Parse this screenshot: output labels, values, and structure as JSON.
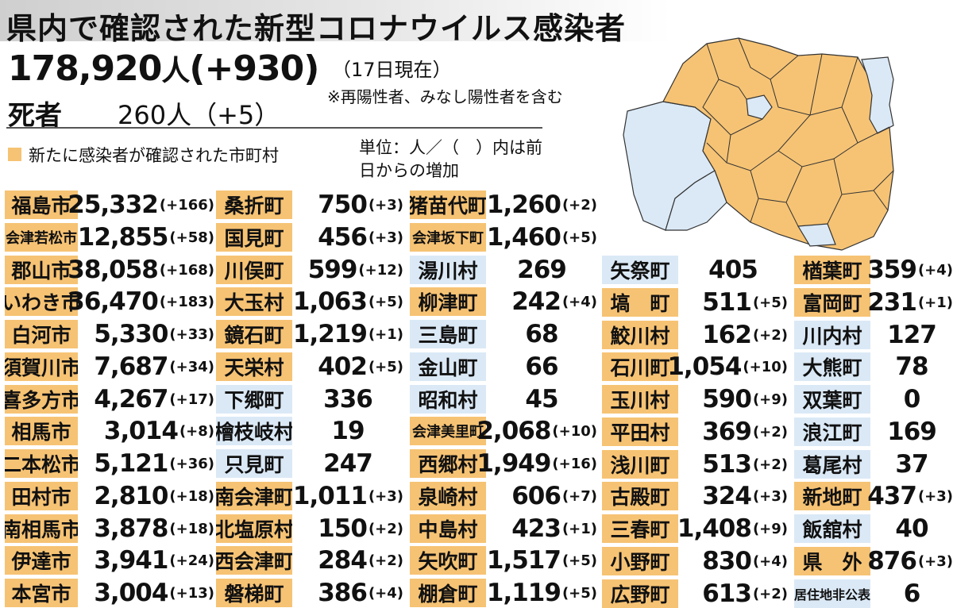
{
  "title": "県内で確認された新型コロナウイルス感染者",
  "total": {
    "count": "178,920",
    "unit": "人",
    "change": "(+930)"
  },
  "as_of": "（17日現在）",
  "note": "※再陽性者、みなし陽性者を含む",
  "deaths": {
    "label": "死者",
    "value": "260人（+5）"
  },
  "legend": "新たに感染者が確認された市町村",
  "unit_note": "単位：人／（　）内は前日からの増加",
  "colors": {
    "new_cases": "#f6c374",
    "no_new_cases": "#dbe9f6"
  },
  "columns": [
    [
      {
        "name": "福島市",
        "num": "25,332",
        "chg": "(+166)",
        "new": true
      },
      {
        "name": "会津若松市",
        "num": "12,855",
        "chg": "(+58)",
        "new": true
      },
      {
        "name": "郡山市",
        "num": "38,058",
        "chg": "(+168)",
        "new": true
      },
      {
        "name": "いわき市",
        "num": "36,470",
        "chg": "(+183)",
        "new": true
      },
      {
        "name": "白河市",
        "num": "5,330",
        "chg": "(+33)",
        "new": true
      },
      {
        "name": "須賀川市",
        "num": "7,687",
        "chg": "(+34)",
        "new": true
      },
      {
        "name": "喜多方市",
        "num": "4,267",
        "chg": "(+17)",
        "new": true
      },
      {
        "name": "相馬市",
        "num": "3,014",
        "chg": "(+8)",
        "new": true
      },
      {
        "name": "二本松市",
        "num": "5,121",
        "chg": "(+36)",
        "new": true
      },
      {
        "name": "田村市",
        "num": "2,810",
        "chg": "(+18)",
        "new": true
      },
      {
        "name": "南相馬市",
        "num": "3,878",
        "chg": "(+18)",
        "new": true
      },
      {
        "name": "伊達市",
        "num": "3,941",
        "chg": "(+24)",
        "new": true
      },
      {
        "name": "本宮市",
        "num": "3,004",
        "chg": "(+13)",
        "new": true
      }
    ],
    [
      {
        "name": "桑折町",
        "num": "750",
        "chg": "(+3)",
        "new": true
      },
      {
        "name": "国見町",
        "num": "456",
        "chg": "(+3)",
        "new": true
      },
      {
        "name": "川俣町",
        "num": "599",
        "chg": "(+12)",
        "new": true
      },
      {
        "name": "大玉村",
        "num": "1,063",
        "chg": "(+5)",
        "new": true
      },
      {
        "name": "鏡石町",
        "num": "1,219",
        "chg": "(+1)",
        "new": true
      },
      {
        "name": "天栄村",
        "num": "402",
        "chg": "(+5)",
        "new": true
      },
      {
        "name": "下郷町",
        "num": "336",
        "chg": "",
        "new": false
      },
      {
        "name": "檜枝岐村",
        "num": "19",
        "chg": "",
        "new": false
      },
      {
        "name": "只見町",
        "num": "247",
        "chg": "",
        "new": false
      },
      {
        "name": "南会津町",
        "num": "1,011",
        "chg": "(+3)",
        "new": true
      },
      {
        "name": "北塩原村",
        "num": "150",
        "chg": "(+2)",
        "new": true
      },
      {
        "name": "西会津町",
        "num": "284",
        "chg": "(+2)",
        "new": true
      },
      {
        "name": "磐梯町",
        "num": "386",
        "chg": "(+4)",
        "new": true
      }
    ],
    [
      {
        "name": "猪苗代町",
        "num": "1,260",
        "chg": "(+2)",
        "new": true
      },
      {
        "name": "会津坂下町",
        "num": "1,460",
        "chg": "(+5)",
        "new": true
      },
      {
        "name": "湯川村",
        "num": "269",
        "chg": "",
        "new": false
      },
      {
        "name": "柳津町",
        "num": "242",
        "chg": "(+4)",
        "new": true
      },
      {
        "name": "三島町",
        "num": "68",
        "chg": "",
        "new": false
      },
      {
        "name": "金山町",
        "num": "66",
        "chg": "",
        "new": false
      },
      {
        "name": "昭和村",
        "num": "45",
        "chg": "",
        "new": false
      },
      {
        "name": "会津美里町",
        "num": "2,068",
        "chg": "(+10)",
        "new": true
      },
      {
        "name": "西郷村",
        "num": "1,949",
        "chg": "(+16)",
        "new": true
      },
      {
        "name": "泉崎村",
        "num": "606",
        "chg": "(+7)",
        "new": true
      },
      {
        "name": "中島村",
        "num": "423",
        "chg": "(+1)",
        "new": true
      },
      {
        "name": "矢吹町",
        "num": "1,517",
        "chg": "(+5)",
        "new": true
      },
      {
        "name": "棚倉町",
        "num": "1,119",
        "chg": "(+5)",
        "new": true
      }
    ],
    [
      {
        "name": "矢祭町",
        "num": "405",
        "chg": "",
        "new": false
      },
      {
        "name": "塙　町",
        "num": "511",
        "chg": "(+5)",
        "new": true
      },
      {
        "name": "鮫川村",
        "num": "162",
        "chg": "(+2)",
        "new": true
      },
      {
        "name": "石川町",
        "num": "1,054",
        "chg": "(+10)",
        "new": true
      },
      {
        "name": "玉川村",
        "num": "590",
        "chg": "(+9)",
        "new": true
      },
      {
        "name": "平田村",
        "num": "369",
        "chg": "(+2)",
        "new": true
      },
      {
        "name": "浅川町",
        "num": "513",
        "chg": "(+2)",
        "new": true
      },
      {
        "name": "古殿町",
        "num": "324",
        "chg": "(+3)",
        "new": true
      },
      {
        "name": "三春町",
        "num": "1,408",
        "chg": "(+9)",
        "new": true
      },
      {
        "name": "小野町",
        "num": "830",
        "chg": "(+4)",
        "new": true
      },
      {
        "name": "広野町",
        "num": "613",
        "chg": "(+2)",
        "new": true
      }
    ],
    [
      {
        "name": "楢葉町",
        "num": "359",
        "chg": "(+4)",
        "new": true
      },
      {
        "name": "富岡町",
        "num": "231",
        "chg": "(+1)",
        "new": true
      },
      {
        "name": "川内村",
        "num": "127",
        "chg": "",
        "new": false
      },
      {
        "name": "大熊町",
        "num": "78",
        "chg": "",
        "new": false
      },
      {
        "name": "双葉町",
        "num": "0",
        "chg": "",
        "new": false
      },
      {
        "name": "浪江町",
        "num": "169",
        "chg": "",
        "new": false
      },
      {
        "name": "葛尾村",
        "num": "37",
        "chg": "",
        "new": false
      },
      {
        "name": "新地町",
        "num": "437",
        "chg": "(+3)",
        "new": true
      },
      {
        "name": "飯舘村",
        "num": "40",
        "chg": "",
        "new": false
      },
      {
        "name": "県　外",
        "num": "876",
        "chg": "(+3)",
        "new": true
      },
      {
        "name": "居住地非公表",
        "num": "6",
        "chg": "",
        "new": false
      }
    ]
  ]
}
